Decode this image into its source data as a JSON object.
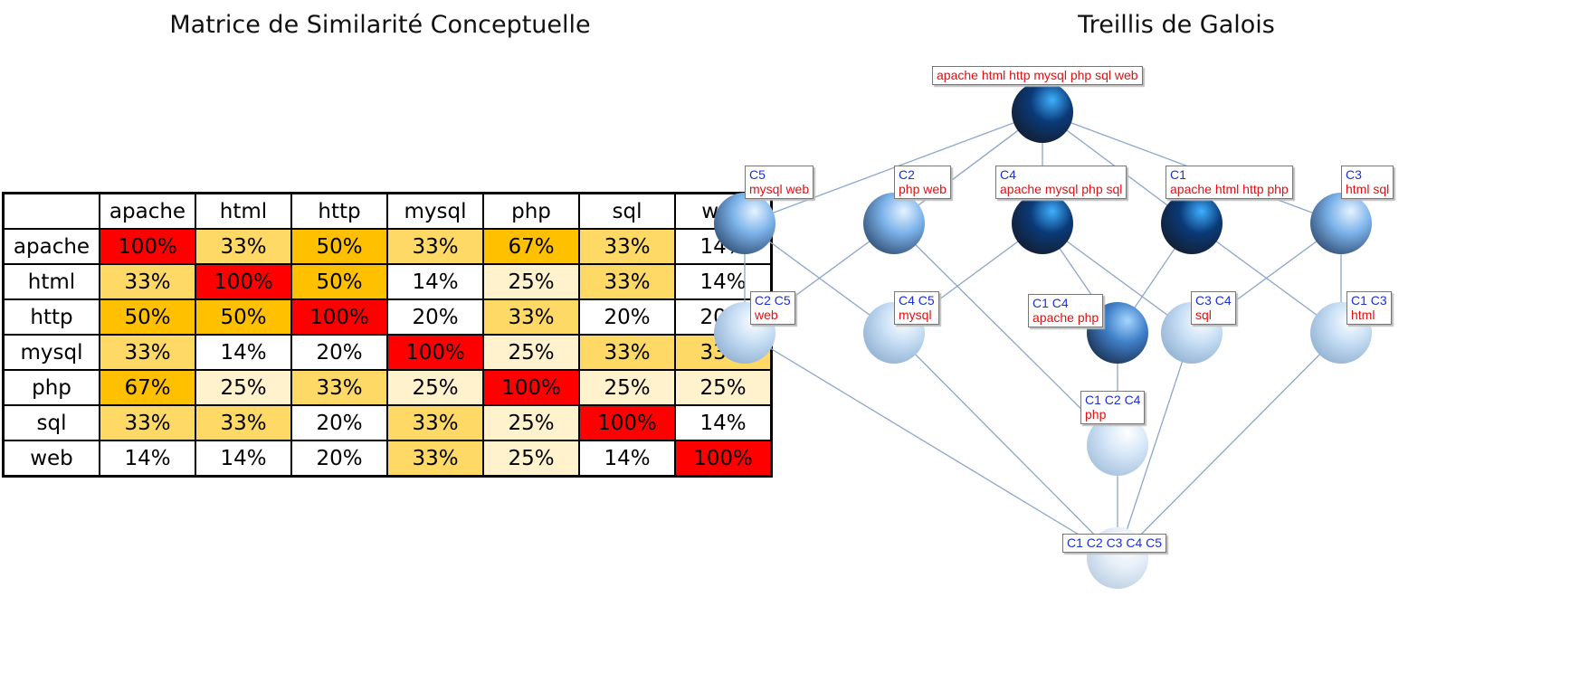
{
  "matrix": {
    "title": "Matrice de Similarité Conceptuelle",
    "columns": [
      "apache",
      "html",
      "http",
      "mysql",
      "php",
      "sql",
      "web"
    ],
    "rows": [
      {
        "label": "apache",
        "cells": [
          "100%",
          "33%",
          "50%",
          "33%",
          "67%",
          "33%",
          "14%"
        ]
      },
      {
        "label": "html",
        "cells": [
          "33%",
          "100%",
          "50%",
          "14%",
          "25%",
          "33%",
          "14%"
        ]
      },
      {
        "label": "http",
        "cells": [
          "50%",
          "50%",
          "100%",
          "20%",
          "33%",
          "20%",
          "20%"
        ]
      },
      {
        "label": "mysql",
        "cells": [
          "33%",
          "14%",
          "20%",
          "100%",
          "25%",
          "33%",
          "33%"
        ]
      },
      {
        "label": "php",
        "cells": [
          "67%",
          "25%",
          "33%",
          "25%",
          "100%",
          "25%",
          "25%"
        ]
      },
      {
        "label": "sql",
        "cells": [
          "33%",
          "33%",
          "20%",
          "33%",
          "25%",
          "100%",
          "14%"
        ]
      },
      {
        "label": "web",
        "cells": [
          "14%",
          "14%",
          "20%",
          "33%",
          "25%",
          "14%",
          "100%"
        ]
      }
    ],
    "colors": {
      "100%": "#ff0000",
      "67%": "#ffc000",
      "50%": "#ffc000",
      "33%": "#ffd966",
      "25%": "#fff2cc",
      "20%": "#ffffff",
      "14%": "#ffffff"
    }
  },
  "lattice": {
    "title": "Treillis de Galois",
    "nodes": [
      {
        "id": "top",
        "extent": "",
        "intent": "apache html http mysql php sql web",
        "shade": "dark"
      },
      {
        "id": "c5",
        "extent": "C5",
        "intent": "mysql web",
        "shade": "medium"
      },
      {
        "id": "c2",
        "extent": "C2",
        "intent": "php web",
        "shade": "medium"
      },
      {
        "id": "c4",
        "extent": "C4",
        "intent": "apache mysql php sql",
        "shade": "dark"
      },
      {
        "id": "c1",
        "extent": "C1",
        "intent": "apache html http php",
        "shade": "dark"
      },
      {
        "id": "c3",
        "extent": "C3",
        "intent": "html sql",
        "shade": "medium"
      },
      {
        "id": "c2c5",
        "extent": "C2 C5",
        "intent": "web",
        "shade": "light"
      },
      {
        "id": "c4c5",
        "extent": "C4 C5",
        "intent": "mysql",
        "shade": "light"
      },
      {
        "id": "c1c4",
        "extent": "C1 C4",
        "intent": "apache php",
        "shade": "medium-dark"
      },
      {
        "id": "c3c4",
        "extent": "C3 C4",
        "intent": "sql",
        "shade": "light"
      },
      {
        "id": "c1c3",
        "extent": "C1 C3",
        "intent": "html",
        "shade": "light"
      },
      {
        "id": "c1c2c4",
        "extent": "C1 C2 C4",
        "intent": "php",
        "shade": "lighter"
      },
      {
        "id": "bottom",
        "extent": "C1 C2 C3 C4 C5",
        "intent": "",
        "shade": "lightest"
      }
    ],
    "edges": [
      [
        "top",
        "c5"
      ],
      [
        "top",
        "c2"
      ],
      [
        "top",
        "c4"
      ],
      [
        "top",
        "c1"
      ],
      [
        "top",
        "c3"
      ],
      [
        "c5",
        "c2c5"
      ],
      [
        "c5",
        "c4c5"
      ],
      [
        "c2",
        "c2c5"
      ],
      [
        "c2",
        "c1c2c4"
      ],
      [
        "c4",
        "c4c5"
      ],
      [
        "c4",
        "c1c4"
      ],
      [
        "c4",
        "c3c4"
      ],
      [
        "c1",
        "c1c4"
      ],
      [
        "c1",
        "c1c3"
      ],
      [
        "c3",
        "c3c4"
      ],
      [
        "c3",
        "c1c3"
      ],
      [
        "c1c4",
        "c1c2c4"
      ],
      [
        "c2c5",
        "bottom"
      ],
      [
        "c4c5",
        "bottom"
      ],
      [
        "c1c2c4",
        "bottom"
      ],
      [
        "c3c4",
        "bottom"
      ],
      [
        "c1c3",
        "bottom"
      ]
    ],
    "shade_colors": {
      "dark": [
        "#3fb0ff",
        "#0a3a78",
        "#141c2c"
      ],
      "medium-dark": [
        "#a6d6ff",
        "#3f7fc8",
        "#1b2e4d"
      ],
      "medium": [
        "#e6f3ff",
        "#7cb3ea",
        "#2f4b72"
      ],
      "light": [
        "#ffffff",
        "#c8dff5",
        "#8eaed0"
      ],
      "lighter": [
        "#ffffff",
        "#d6e7f8",
        "#a3bfdc"
      ],
      "lightest": [
        "#ffffff",
        "#e6eff8",
        "#b9cde2"
      ]
    },
    "edge_color": "#8ca6c8"
  }
}
